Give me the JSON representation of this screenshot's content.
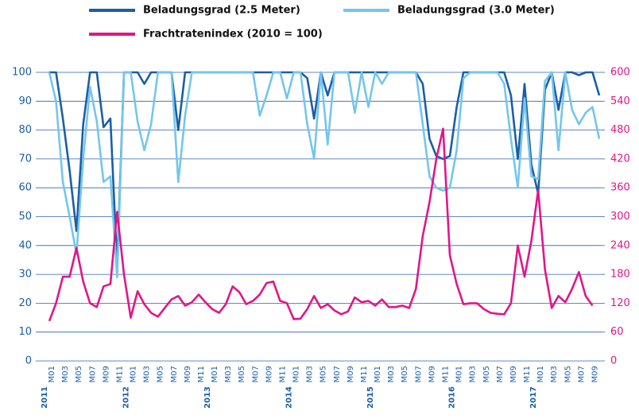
{
  "chart_data": {
    "type": "line",
    "categories": [
      "M01",
      null,
      "M03",
      null,
      "M05",
      null,
      "M07",
      null,
      "M09",
      null,
      "M11",
      null,
      "M01",
      null,
      "M03",
      null,
      "M05",
      null,
      "M07",
      null,
      "M09",
      null,
      "M11",
      null,
      "M01",
      null,
      "M03",
      null,
      "M05",
      null,
      "M07",
      null,
      "M09",
      null,
      "M11",
      null,
      "M01",
      null,
      "M03",
      null,
      "M05",
      null,
      "M07",
      null,
      "M09",
      null,
      "M11",
      null,
      "M01",
      null,
      "M03",
      null,
      "M05",
      null,
      "M07",
      null,
      "M09",
      null,
      "M11",
      null,
      "M01",
      null,
      "M03",
      null,
      "M05",
      null,
      "M07",
      null,
      "M09",
      null,
      "M11",
      null,
      "M01",
      null,
      "M03",
      null,
      "M05",
      null,
      "M07",
      null,
      "M09",
      null
    ],
    "years": [
      "2011",
      "2012",
      "2013",
      "2014",
      "2015",
      "2016",
      "2017"
    ],
    "series": [
      {
        "name": "Beladungsgrad (2.5 Meter)",
        "color": "#1b5ea6",
        "values": [
          100,
          100,
          84,
          66,
          45,
          82,
          100,
          100,
          81,
          84,
          33,
          100,
          100,
          100,
          96,
          100,
          100,
          100,
          100,
          80,
          100,
          100,
          100,
          100,
          100,
          100,
          100,
          100,
          100,
          100,
          100,
          100,
          100,
          100,
          100,
          100,
          100,
          100,
          98,
          84,
          100,
          92,
          100,
          100,
          100,
          100,
          100,
          100,
          100,
          100,
          100,
          100,
          100,
          100,
          100,
          96,
          77,
          71,
          70,
          71,
          88,
          100,
          100,
          100,
          100,
          100,
          100,
          100,
          92,
          70,
          96,
          68,
          58,
          94,
          100,
          87,
          100,
          100,
          99,
          100,
          100,
          92
        ]
      },
      {
        "name": "Beladungsgrad (3.0 Meter)",
        "color": "#74c6ec",
        "values": [
          100,
          90,
          62,
          50,
          37,
          70,
          95,
          83,
          62,
          64,
          29,
          100,
          100,
          83,
          73,
          82,
          100,
          100,
          100,
          62,
          85,
          100,
          100,
          100,
          100,
          100,
          100,
          100,
          100,
          100,
          100,
          85,
          92,
          100,
          100,
          91,
          100,
          100,
          82,
          70,
          100,
          75,
          100,
          100,
          100,
          86,
          100,
          88,
          100,
          96,
          100,
          100,
          100,
          100,
          100,
          82,
          64,
          60,
          59,
          60,
          73,
          98,
          100,
          100,
          100,
          100,
          100,
          96,
          77,
          60,
          91,
          64,
          63,
          97,
          100,
          73,
          100,
          87,
          82,
          86,
          88,
          77
        ]
      },
      {
        "name": "Frachtratenindex (2010 = 100)",
        "color": "#e0168a",
        "axis": "y2",
        "values": [
          83,
          120,
          175,
          175,
          235,
          165,
          120,
          112,
          155,
          160,
          310,
          180,
          90,
          145,
          118,
          100,
          92,
          110,
          128,
          135,
          115,
          122,
          138,
          122,
          108,
          100,
          118,
          155,
          143,
          118,
          125,
          138,
          162,
          165,
          125,
          120,
          87,
          88,
          108,
          135,
          110,
          118,
          105,
          97,
          103,
          132,
          122,
          125,
          115,
          128,
          112,
          112,
          115,
          110,
          150,
          260,
          330,
          420,
          483,
          220,
          160,
          118,
          120,
          120,
          108,
          100,
          98,
          97,
          120,
          240,
          175,
          250,
          355,
          190,
          110,
          135,
          122,
          150,
          185,
          135,
          115,
          null
        ]
      }
    ],
    "ylim": [
      0,
      100
    ],
    "yticks": [
      0,
      10,
      20,
      30,
      40,
      50,
      60,
      70,
      80,
      90,
      100
    ],
    "y2lim": [
      0,
      600
    ],
    "y2ticks": [
      0,
      60,
      120,
      180,
      240,
      300,
      360,
      420,
      480,
      540,
      600
    ],
    "grid": true
  }
}
